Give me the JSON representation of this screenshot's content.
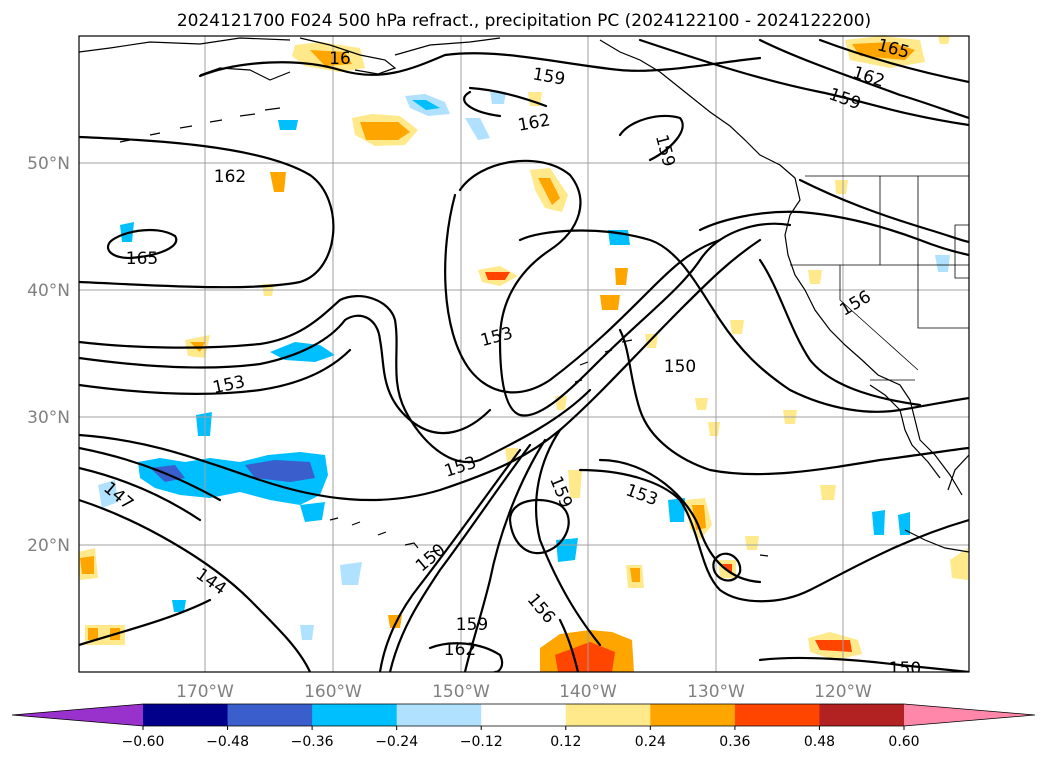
{
  "title": "2024121700 F024 500 hPa refract., precipitation PC (2024122100 - 2024122200)",
  "axes": {
    "lon_ticks": [
      "170°W",
      "160°W",
      "150°W",
      "140°W",
      "130°W",
      "120°W"
    ],
    "lat_ticks": [
      "50°N",
      "40°N",
      "30°N",
      "20°N"
    ]
  },
  "colorbar": {
    "ticks": [
      "−0.60",
      "−0.48",
      "−0.36",
      "−0.24",
      "−0.12",
      "0.12",
      "0.24",
      "0.36",
      "0.48",
      "0.60"
    ],
    "colors": [
      "#9932cc",
      "#00008b",
      "#3a5fcd",
      "#00bfff",
      "#b0e2ff",
      "#ffffff",
      "#ffe98a",
      "#ffa500",
      "#ff4500",
      "#b22222",
      "#ff88aa"
    ],
    "extend": "both"
  },
  "contour_labels": [
    {
      "text": "165"
    },
    {
      "text": "165"
    },
    {
      "text": "162"
    },
    {
      "text": "159"
    },
    {
      "text": "162"
    },
    {
      "text": "159"
    },
    {
      "text": "162"
    },
    {
      "text": "159"
    },
    {
      "text": "165"
    },
    {
      "text": "153"
    },
    {
      "text": "153"
    },
    {
      "text": "156"
    },
    {
      "text": "150"
    },
    {
      "text": "147"
    },
    {
      "text": "153"
    },
    {
      "text": "159"
    },
    {
      "text": "153"
    },
    {
      "text": "144"
    },
    {
      "text": "150"
    },
    {
      "text": "159"
    },
    {
      "text": "156"
    },
    {
      "text": "162"
    },
    {
      "text": "150"
    },
    {
      "text": "16"
    }
  ]
}
